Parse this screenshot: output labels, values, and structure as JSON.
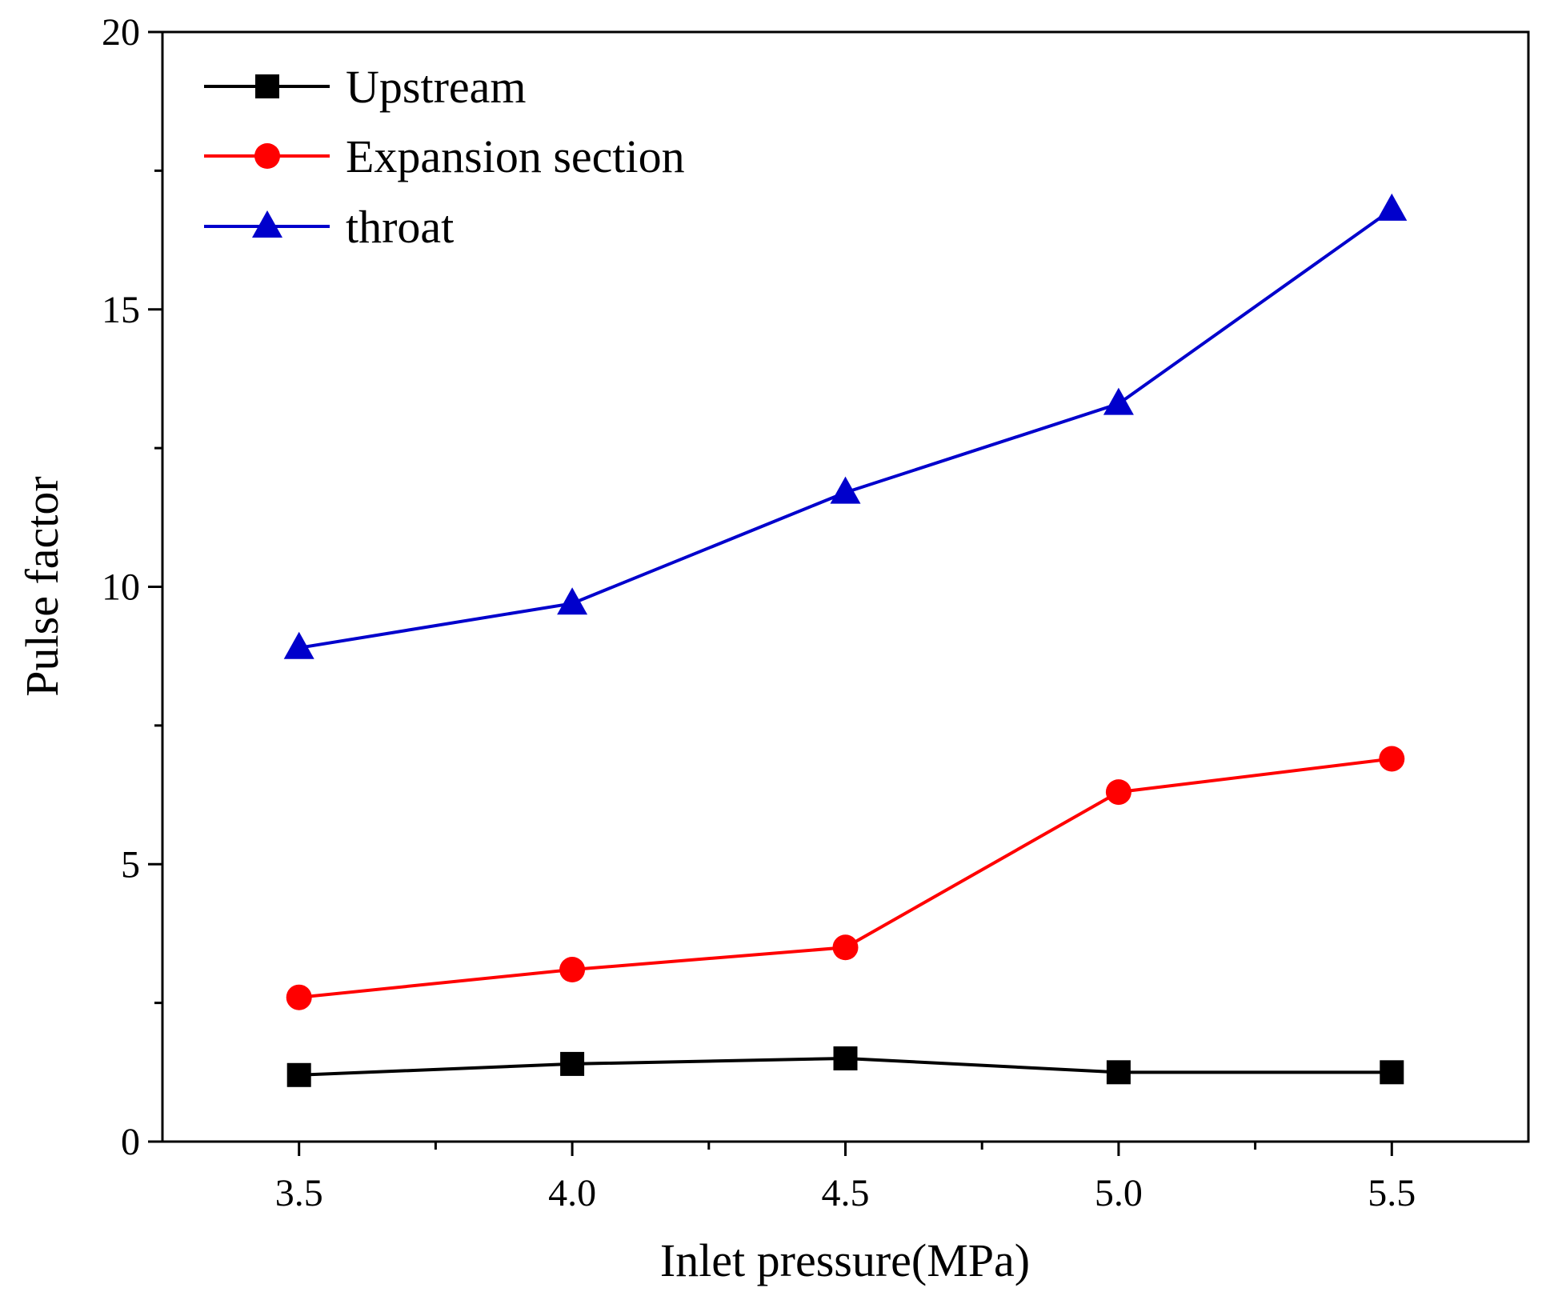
{
  "chart_data": {
    "type": "line",
    "title": "",
    "xlabel": "Inlet pressure(MPa)",
    "ylabel": "Pulse factor",
    "x": [
      3.5,
      4.0,
      4.5,
      5.0,
      5.5
    ],
    "xlim": [
      3.25,
      5.75
    ],
    "ylim": [
      0,
      20
    ],
    "xticks": [
      3.5,
      4.0,
      4.5,
      5.0,
      5.5
    ],
    "xtick_labels": [
      "3.5",
      "4.0",
      "4.5",
      "5.0",
      "5.5"
    ],
    "yticks": [
      0,
      5,
      10,
      15,
      20
    ],
    "ytick_labels": [
      "0",
      "5",
      "10",
      "15",
      "20"
    ],
    "grid": false,
    "legend_position": "top-left",
    "series": [
      {
        "name": "Upstream",
        "color": "#000000",
        "marker": "square",
        "values": [
          1.2,
          1.4,
          1.5,
          1.25,
          1.25
        ]
      },
      {
        "name": "Expansion section",
        "color": "#ff0000",
        "marker": "circle",
        "values": [
          2.6,
          3.1,
          3.5,
          6.3,
          6.9
        ]
      },
      {
        "name": "throat",
        "color": "#0000cc",
        "marker": "triangle",
        "values": [
          8.9,
          9.7,
          11.7,
          13.3,
          16.8
        ]
      }
    ]
  }
}
